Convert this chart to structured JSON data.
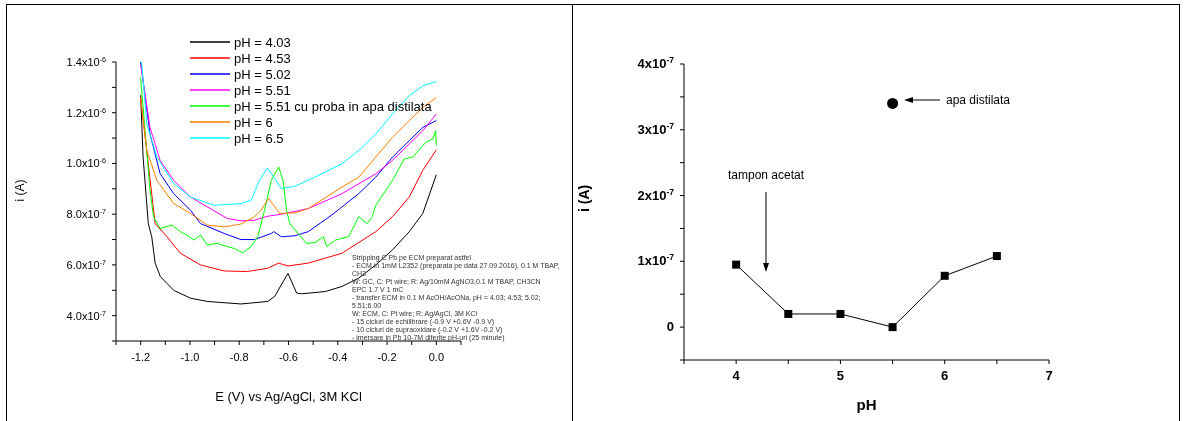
{
  "chart_data": [
    {
      "type": "line",
      "xlabel": "E (V) vs Ag/AgCl, 3M KCl",
      "ylabel": "i (A)",
      "legend": "top",
      "xlim": [
        -1.3,
        0.1
      ],
      "xticks": [
        {
          "value": -1.3,
          "label": null
        },
        -1.2,
        {
          "value": -1.1,
          "label": null
        },
        {
          "value": -1.0,
          "label": "-1.0"
        },
        {
          "value": -0.9,
          "label": null
        },
        -0.8,
        {
          "value": -0.7,
          "label": null
        },
        -0.6,
        {
          "value": -0.5,
          "label": null
        },
        -0.4,
        {
          "value": -0.3,
          "label": null
        },
        -0.2,
        {
          "value": -0.1,
          "label": null
        },
        {
          "value": 0,
          "label": "0.0"
        },
        {
          "value": 0.1,
          "label": null
        }
      ],
      "ylim": [
        3e-07,
        1.4e-06
      ],
      "yticks": [
        {
          "value": 3e-07,
          "label": null
        },
        {
          "value": 4e-07,
          "label": "4.0x10$^{-7}$"
        },
        {
          "value": 5e-07,
          "label": null
        },
        {
          "value": 6e-07,
          "label": "6.0x10$^{-7}$"
        },
        {
          "value": 7e-07,
          "label": null
        },
        {
          "value": 8e-07,
          "label": "8.0x10$^{-7}$"
        },
        {
          "value": 9e-07,
          "label": null
        },
        {
          "value": 1e-06,
          "label": "1.0x10$^{-6}$"
        },
        {
          "value": 1.1e-06,
          "label": null
        },
        {
          "value": 1.2e-06,
          "label": "1.2x10$^{-6}$"
        },
        {
          "value": 1.3e-06,
          "label": null
        },
        {
          "value": 1.4e-06,
          "label": "1.4x10$^{-6}$"
        }
      ],
      "annotations": [
        "Stripping C Pb pe ECM preparat astfel\n- ECM in 1mM L2352 (preparata pe data 27.09.2016), 0.1 M TBAP, CH3\nW: GC, C: Pt wire; R: Ag/10mM AgNO3,0.1 M TBAP, CH3CN\nEPC 1.7 V 1 mC\n- transfer ECM in 0.1 M AcOH/AcONa, pH = 4.03; 4.53; 5.02; 5.51;6.00\nW: ECM, C: Pt wire; R: Ag/AgCl, 3M KCl\n- 15 cicluri de echilibrare (-0.9 V +0.6V -0.9 V)\n- 10 cicluri de supraoxidare (-0.2 V +1.6V -0.2 V)\n- imersare in Pb 10-7M diferite pH-uri (25 minute)"
      ],
      "series": [
        {
          "name": "pH = 4.03",
          "color": "#000000",
          "x": [
            -1.2,
            -1.19,
            -1.169,
            -1.155,
            -1.141,
            -1.12,
            -1.066,
            -0.998,
            -0.93,
            -0.793,
            -0.684,
            -0.656,
            -0.602,
            -0.567,
            -0.547,
            -0.451,
            -0.383,
            -0.315,
            -0.246,
            -0.178,
            -0.11,
            -0.055,
            0
          ],
          "values": [
            1.269e-06,
            1.025e-06,
            7.63e-07,
            7.11e-07,
            6.07e-07,
            5.54e-07,
            5e-07,
            4.69e-07,
            4.56e-07,
            4.46e-07,
            4.56e-07,
            4.76e-07,
            5.67e-07,
            4.89e-07,
            4.86e-07,
            4.95e-07,
            5.15e-07,
            5.48e-07,
            6e-07,
            6.59e-07,
            7.31e-07,
            8.03e-07,
            9.56e-07
          ]
        },
        {
          "name": "pH = 4.53",
          "color": "#ff0000",
          "x": [
            -1.2,
            -1.141,
            -1.093,
            -1.039,
            -0.957,
            -0.861,
            -0.766,
            -0.684,
            -0.64,
            -0.602,
            -0.52,
            -0.383,
            -0.246,
            -0.178,
            -0.11,
            -0.055,
            0
          ],
          "values": [
            1.258e-06,
            7.63e-07,
            7.11e-07,
            6.46e-07,
            6e-07,
            5.76e-07,
            5.74e-07,
            5.87e-07,
            6.07e-07,
            5.96e-07,
            6.07e-07,
            6.46e-07,
            7.31e-07,
            7.9e-07,
            8.68e-07,
            9.73e-07,
            1.054e-06
          ]
        },
        {
          "name": "pH = 5.02",
          "color": "#0000ff",
          "x": [
            -1.2,
            -1.162,
            -1.121,
            -1.066,
            -0.998,
            -0.957,
            -0.861,
            -0.793,
            -0.738,
            -0.67,
            -0.66,
            -0.629,
            -0.574,
            -0.52,
            -0.424,
            -0.315,
            -0.246,
            -0.178,
            -0.11,
            -0.055,
            0
          ],
          "values": [
            1.4e-06,
            1.116e-06,
            9.6e-07,
            8.81e-07,
            8.16e-07,
            7.63e-07,
            7.24e-07,
            7e-07,
            7e-07,
            7.24e-07,
            7.31e-07,
            7.11e-07,
            7.15e-07,
            7.31e-07,
            7.97e-07,
            8.81e-07,
            9.46e-07,
            1.025e-06,
            1.09e-06,
            1.142e-06,
            1.169e-06
          ]
        },
        {
          "name": "pH = 5.51",
          "color": "#ff00ff",
          "x": [
            -1.2,
            -1.162,
            -1.121,
            -1.066,
            -0.998,
            -0.93,
            -0.848,
            -0.793,
            -0.738,
            -0.684,
            -0.629,
            -0.52,
            -0.383,
            -0.246,
            -0.178,
            -0.11,
            -0.055,
            0
          ],
          "values": [
            1.391e-06,
            1.142e-06,
            1.012e-06,
            9.33e-07,
            8.68e-07,
            8.29e-07,
            7.83e-07,
            7.74e-07,
            7.76e-07,
            7.92e-07,
            8e-07,
            8.22e-07,
            8.81e-07,
            9.59e-07,
            1.012e-06,
            1.077e-06,
            1.129e-06,
            1.195e-06
          ]
        },
        {
          "name": "pH = 5.51 cu proba in apa distilata",
          "color": "#00ff00",
          "x": [
            -1.2,
            -1.162,
            -1.148,
            -1.121,
            -1.073,
            -1.039,
            -1.012,
            -0.984,
            -0.957,
            -0.93,
            -0.889,
            -0.848,
            -0.82,
            -0.786,
            -0.752,
            -0.725,
            -0.697,
            -0.67,
            -0.64,
            -0.622,
            -0.608,
            -0.595,
            -0.561,
            -0.527,
            -0.492,
            -0.458,
            -0.445,
            -0.41,
            -0.356,
            -0.315,
            -0.281,
            -0.26,
            -0.246,
            -0.178,
            -0.13,
            -0.096,
            -0.042,
            -0.014,
            -0.003,
            0
          ],
          "values": [
            1.339e-06,
            8.94e-07,
            7.9e-07,
            7.44e-07,
            7.57e-07,
            7.31e-07,
            7.18e-07,
            6.98e-07,
            7.18e-07,
            6.78e-07,
            6.85e-07,
            6.72e-07,
            6.65e-07,
            6.48e-07,
            6.72e-07,
            7.11e-07,
            8.16e-07,
            9.33e-07,
            9.86e-07,
            9.33e-07,
            8.16e-07,
            7.63e-07,
            7.24e-07,
            6.85e-07,
            6.88e-07,
            7.11e-07,
            6.72e-07,
            6.98e-07,
            7.11e-07,
            7.9e-07,
            7.63e-07,
            7.9e-07,
            8.35e-07,
            9.33e-07,
            1.018e-06,
            1.025e-06,
            1.084e-06,
            1.097e-06,
            1.129e-06,
            1.071e-06
          ]
        },
        {
          "name": "pH = 6",
          "color": "#ff8000",
          "x": [
            -1.2,
            -1.175,
            -1.134,
            -1.066,
            -0.998,
            -0.93,
            -0.861,
            -0.793,
            -0.738,
            -0.711,
            -0.681,
            -0.656,
            -0.636,
            -0.574,
            -0.52,
            -0.383,
            -0.315,
            -0.246,
            -0.178,
            -0.11,
            -0.055,
            0
          ],
          "values": [
            1.26e-06,
            1.051e-06,
            9.33e-07,
            8.42e-07,
            8.03e-07,
            7.57e-07,
            7.5e-07,
            7.61e-07,
            7.9e-07,
            8.16e-07,
            8.62e-07,
            8.29e-07,
            8.03e-07,
            8.05e-07,
            8.22e-07,
            9.07e-07,
            9.46e-07,
            1.025e-06,
            1.103e-06,
            1.169e-06,
            1.221e-06,
            1.26e-06
          ]
        },
        {
          "name": "pH = 6.5",
          "color": "#00ffff",
          "x": [
            -1.196,
            -1.175,
            -1.134,
            -1.066,
            -0.998,
            -0.902,
            -0.793,
            -0.752,
            -0.718,
            -0.686,
            -0.656,
            -0.629,
            -0.574,
            -0.492,
            -0.383,
            -0.315,
            -0.246,
            -0.178,
            -0.11,
            -0.055,
            0
          ],
          "values": [
            1.4e-06,
            1.156e-06,
            1.025e-06,
            9.2e-07,
            8.68e-07,
            8.35e-07,
            8.42e-07,
            8.55e-07,
            9.33e-07,
            9.83e-07,
            9.4e-07,
            9.01e-07,
            9.1e-07,
            9.46e-07,
            9.99e-07,
            1.051e-06,
            1.116e-06,
            1.195e-06,
            1.267e-06,
            1.306e-06,
            1.323e-06
          ]
        }
      ]
    },
    {
      "type": "line",
      "xlabel": "pH",
      "ylabel": "i (A)",
      "xlim": [
        3.5,
        7
      ],
      "xticks": [
        {
          "value": 3.5,
          "label": null
        },
        4,
        {
          "value": 4.5,
          "label": null
        },
        5,
        {
          "value": 5.5,
          "label": null
        },
        6,
        {
          "value": 6.5,
          "label": null
        },
        7
      ],
      "ylim": [
        -5e-08,
        4e-07
      ],
      "yticks": [
        {
          "value": -5e-08,
          "label": null
        },
        0,
        {
          "value": 5e-08,
          "label": null
        },
        {
          "value": 1e-07,
          "label": "1x10$^{-7}$"
        },
        {
          "value": 1.5e-07,
          "label": null
        },
        {
          "value": 2e-07,
          "label": "2x10$^{-7}$"
        },
        {
          "value": 2.5e-07,
          "label": null
        },
        {
          "value": 3e-07,
          "label": "3x10$^{-7}$"
        },
        {
          "value": 3.5e-07,
          "label": null
        },
        {
          "value": 4e-07,
          "label": "4x10$^{-7}$"
        }
      ],
      "annotations": [
        "tampon acetat",
        "apa distilata"
      ],
      "series": [
        {
          "marker": "square",
          "color": "#000000",
          "x": [
            4,
            4.5,
            5,
            5.5,
            6,
            6.5
          ],
          "values": [
            9.5e-08,
            2e-08,
            2e-08,
            0,
            7.8e-08,
            1.08e-07
          ]
        },
        {
          "type": "scatter",
          "marker": "circle",
          "color": "#000000",
          "x": [
            5.5
          ],
          "values": [
            3.4e-07
          ]
        }
      ]
    }
  ]
}
